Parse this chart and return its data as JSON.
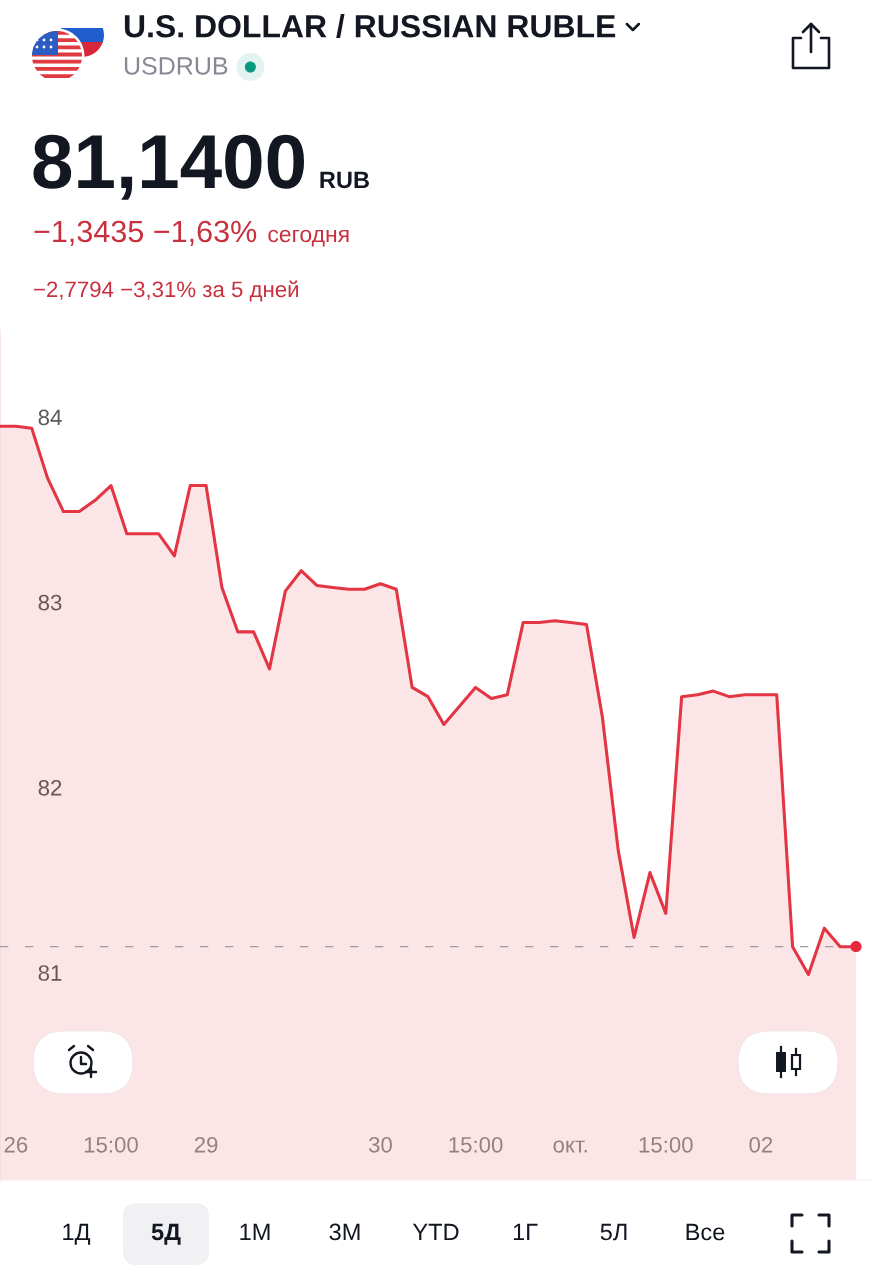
{
  "chart_data": {
    "type": "area",
    "title": "U.S. DOLLAR / RUSSIAN RUBLE",
    "subtitle": "USDRUB",
    "categories": [
      null,
      "26",
      null,
      null,
      null,
      null,
      null,
      "15:00",
      null,
      null,
      null,
      null,
      null,
      "29",
      null,
      null,
      null,
      null,
      null,
      null,
      null,
      null,
      null,
      null,
      "30",
      null,
      null,
      null,
      null,
      null,
      "15:00",
      null,
      null,
      null,
      null,
      null,
      "окт.",
      null,
      null,
      null,
      null,
      null,
      "15:00",
      null,
      null,
      null,
      null,
      null,
      "02",
      null,
      null,
      null,
      null,
      null,
      null
    ],
    "series": [
      {
        "color": "#e33543",
        "values": [
          83.95,
          83.95,
          83.94,
          83.67,
          83.49,
          83.49,
          83.55,
          83.63,
          83.37,
          83.37,
          83.37,
          83.25,
          83.63,
          83.63,
          83.08,
          82.84,
          82.84,
          82.64,
          83.06,
          83.17,
          83.09,
          83.08,
          83.07,
          83.07,
          83.1,
          83.07,
          82.54,
          82.49,
          82.34,
          82.44,
          82.54,
          82.48,
          82.5,
          82.89,
          82.89,
          82.9,
          82.89,
          82.88,
          82.38,
          81.66,
          81.19,
          81.54,
          81.32,
          82.49,
          82.5,
          82.52,
          82.49,
          82.5,
          82.5,
          82.5,
          81.14,
          80.99,
          81.24,
          81.14,
          81.14
        ]
      },
      {
        "type": "scatter",
        "color": "#e8293b",
        "values": [
          null,
          null,
          null,
          null,
          null,
          null,
          null,
          null,
          null,
          null,
          null,
          null,
          null,
          null,
          null,
          null,
          null,
          null,
          null,
          null,
          null,
          null,
          null,
          null,
          null,
          null,
          null,
          null,
          null,
          null,
          null,
          null,
          null,
          null,
          null,
          null,
          null,
          null,
          null,
          null,
          null,
          null,
          null,
          null,
          null,
          null,
          null,
          null,
          null,
          null,
          null,
          null,
          null,
          null,
          81.14
        ]
      }
    ],
    "ylim": [
      79.88,
      84.47
    ],
    "yticks": [
      81,
      82,
      83,
      84
    ],
    "ref_lines": [
      {
        "axis": "y",
        "value": 81.14,
        "color": "#9e9e9e",
        "line_style": "dashed"
      }
    ],
    "annotations": [
      "81,1400",
      "RUB",
      "−1,3435 −1,63%",
      "сегодня",
      "−2,7794 −3,31% за 5 дней",
      "1Д",
      "5Д",
      "1М",
      "3М",
      "YTD",
      "1Г",
      "5Л",
      "Все"
    ]
  }
}
